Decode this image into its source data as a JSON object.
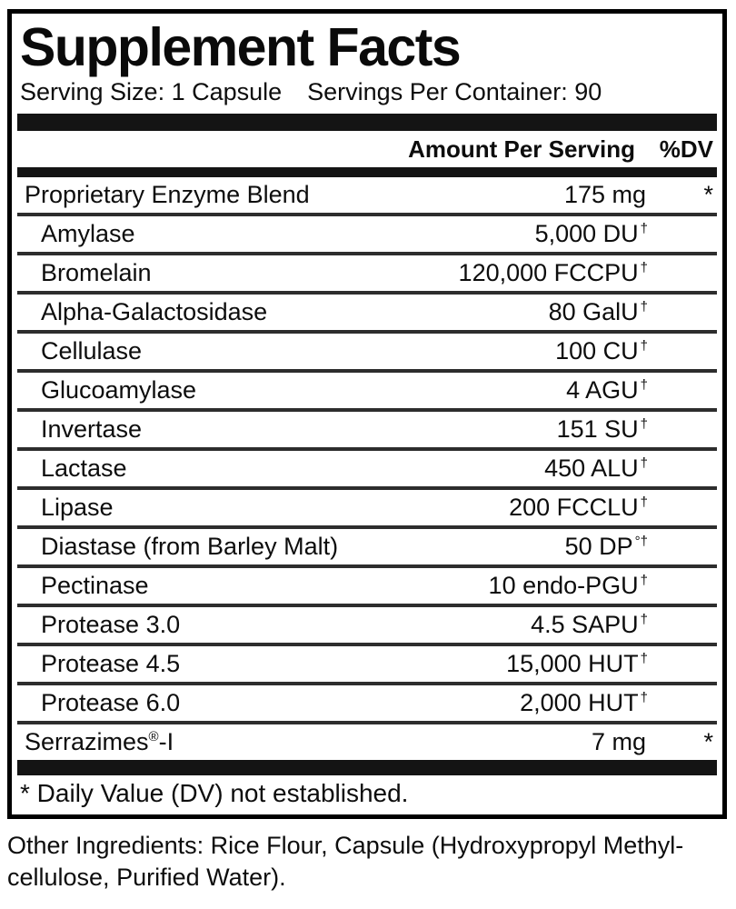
{
  "label": {
    "title": "Supplement Facts",
    "serving_size": "Serving Size: 1 Capsule",
    "servings_per_container": "Servings Per Container: 90",
    "column_headers": {
      "amount": "Amount Per Serving",
      "dv": "%DV"
    },
    "table": {
      "rows": [
        {
          "name": "Proprietary Enzyme Blend",
          "indent": false,
          "amount": "175 mg",
          "amount_sup": "",
          "dv": "*"
        },
        {
          "name": "Amylase",
          "indent": true,
          "amount": "5,000 DU",
          "amount_sup": "†",
          "dv": ""
        },
        {
          "name": "Bromelain",
          "indent": true,
          "amount": "120,000 FCCPU",
          "amount_sup": "†",
          "dv": ""
        },
        {
          "name": "Alpha-Galactosidase",
          "indent": true,
          "amount": "80 GalU",
          "amount_sup": "†",
          "dv": ""
        },
        {
          "name": "Cellulase",
          "indent": true,
          "amount": "100 CU",
          "amount_sup": "†",
          "dv": ""
        },
        {
          "name": "Glucoamylase",
          "indent": true,
          "amount": "4 AGU",
          "amount_sup": "†",
          "dv": ""
        },
        {
          "name": "Invertase",
          "indent": true,
          "amount": "151 SU",
          "amount_sup": "†",
          "dv": ""
        },
        {
          "name": "Lactase",
          "indent": true,
          "amount": "450 ALU",
          "amount_sup": "†",
          "dv": ""
        },
        {
          "name": "Lipase",
          "indent": true,
          "amount": "200 FCCLU",
          "amount_sup": "†",
          "dv": ""
        },
        {
          "name": "Diastase (from Barley Malt)",
          "indent": true,
          "amount": "50 DP",
          "amount_sup": "°†",
          "dv": ""
        },
        {
          "name": "Pectinase",
          "indent": true,
          "amount": "10 endo-PGU",
          "amount_sup": "†",
          "dv": ""
        },
        {
          "name": "Protease 3.0",
          "indent": true,
          "amount": "4.5 SAPU",
          "amount_sup": "†",
          "dv": ""
        },
        {
          "name": "Protease 4.5",
          "indent": true,
          "amount": "15,000 HUT",
          "amount_sup": "†",
          "dv": ""
        },
        {
          "name": "Protease 6.0",
          "indent": true,
          "amount": "2,000 HUT",
          "amount_sup": "†",
          "dv": ""
        },
        {
          "name": "Serrazimes",
          "name_sup": "®",
          "name_after": "-I",
          "indent": false,
          "amount": "7 mg",
          "amount_sup": "",
          "dv": "*"
        }
      ]
    },
    "footnote": "* Daily Value (DV) not established."
  },
  "other_ingredients": {
    "line1": "Other Ingredients: Rice Flour, Capsule (Hydroxypropyl Methyl-",
    "line2": "cellulose, Purified Water)."
  },
  "colors": {
    "background": "#ffffff",
    "border": "#000000",
    "thick_bar": "#141414",
    "row_divider": "#2d2d2d",
    "text": "#0d0d0d"
  }
}
